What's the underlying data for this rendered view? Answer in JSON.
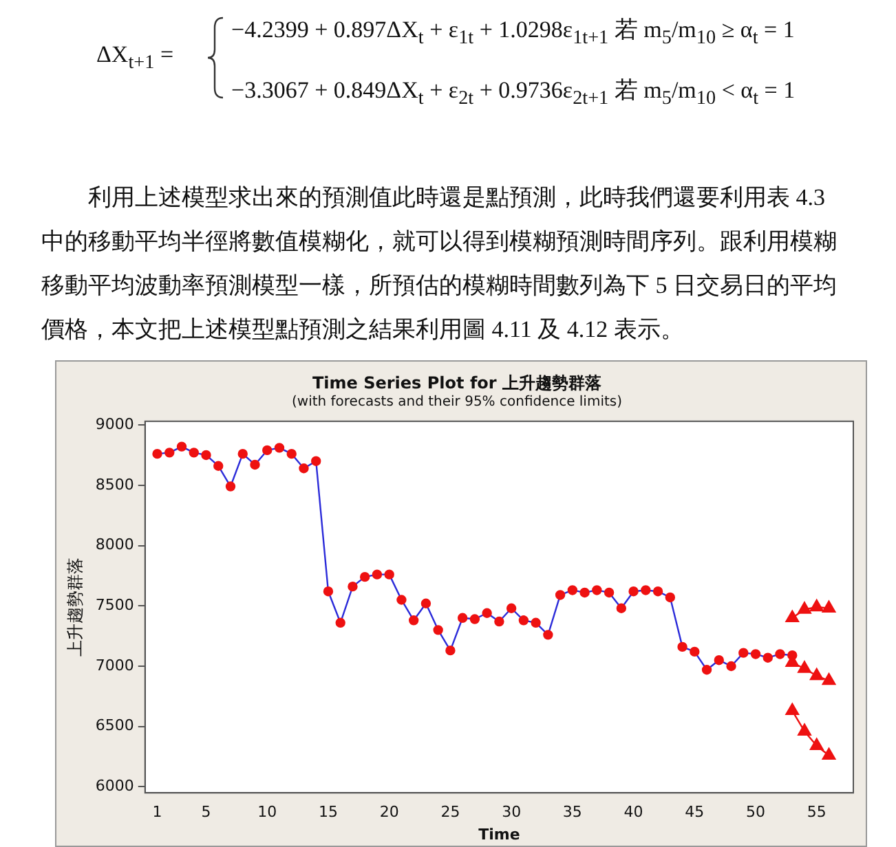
{
  "chart_data": {
    "type": "line",
    "title": "Time Series Plot for 上升趨勢群落",
    "subtitle": "(with forecasts and their 95% confidence limits)",
    "xlabel": "Time",
    "ylabel": "上升趨勢群落",
    "annotations": [
      "ΔX$_{t+1}$ =",
      "−4.2399 + 0.897ΔX$_{t}$ + ε$_{1t}$ + 1.0298ε$_{1t+1}$ 若 m$_{5}$/m$_{10}$ ≥ α$_{t}$ = 1",
      "−3.3067 + 0.849ΔX$_{t}$ + ε$_{2t}$ + 0.9736ε$_{2t+1}$ 若 m$_{5}$/m$_{10}$ < α$_{t}$ = 1",
      "利用上述模型求出來的預測值此時還是點預測，此時我們還要利用表 4.3 中的移動平均半徑將數值模糊化，就可以得到模糊預測時間序列。跟利用模糊移動平均波動率預測模型一樣，所預估的模糊時間數列為下 5 日交易日的平均價格，本文把上述模型點預測之結果利用圖 4.11 及 4.12 表示。"
    ],
    "xlim": [
      0,
      58
    ],
    "xticks": [
      1,
      5,
      10,
      15,
      20,
      25,
      30,
      35,
      40,
      45,
      50,
      55
    ],
    "ylim": [
      5950,
      9030
    ],
    "yticks": [
      6000,
      6500,
      7000,
      7500,
      8000,
      8500,
      9000
    ],
    "grid": false,
    "legend": false,
    "line_style": "solid",
    "series": [
      {
        "color": "#2b2bd9",
        "marker": "circle",
        "x": [
          1,
          2,
          3,
          4,
          5,
          6,
          7,
          8,
          9,
          10,
          11,
          12,
          13,
          14,
          15,
          16,
          17,
          18,
          19,
          20,
          21,
          22,
          23,
          24,
          25,
          26,
          27,
          28,
          29,
          30,
          31,
          32,
          33,
          34,
          35,
          36,
          37,
          38,
          39,
          40,
          41,
          42,
          43,
          44,
          45,
          46,
          47,
          48,
          49,
          50,
          51,
          52,
          53
        ],
        "values": [
          8760,
          8770,
          8820,
          8770,
          8750,
          8660,
          8490,
          8760,
          8670,
          8790,
          8810,
          8760,
          8640,
          8700,
          7620,
          7360,
          7660,
          7740,
          7760,
          7760,
          7550,
          7380,
          7520,
          7300,
          7130,
          7400,
          7390,
          7440,
          7370,
          7480,
          7380,
          7360,
          7260,
          7590,
          7630,
          7610,
          7630,
          7610,
          7480,
          7620,
          7630,
          7620,
          7570,
          7160,
          7120,
          6970,
          7050,
          7000,
          7110,
          7100,
          7070,
          7100,
          7090
        ]
      },
      {
        "color": "#ee1111",
        "marker": "triangle",
        "x": [
          53,
          54,
          55,
          56
        ],
        "values": [
          7400,
          7470,
          7490,
          7480
        ]
      },
      {
        "color": "#ee1111",
        "marker": "triangle",
        "x": [
          53,
          54,
          55,
          56
        ],
        "values": [
          7030,
          6980,
          6920,
          6880
        ]
      },
      {
        "color": "#ee1111",
        "marker": "triangle",
        "x": [
          53,
          54,
          55,
          56
        ],
        "values": [
          6630,
          6460,
          6340,
          6260
        ]
      }
    ]
  }
}
